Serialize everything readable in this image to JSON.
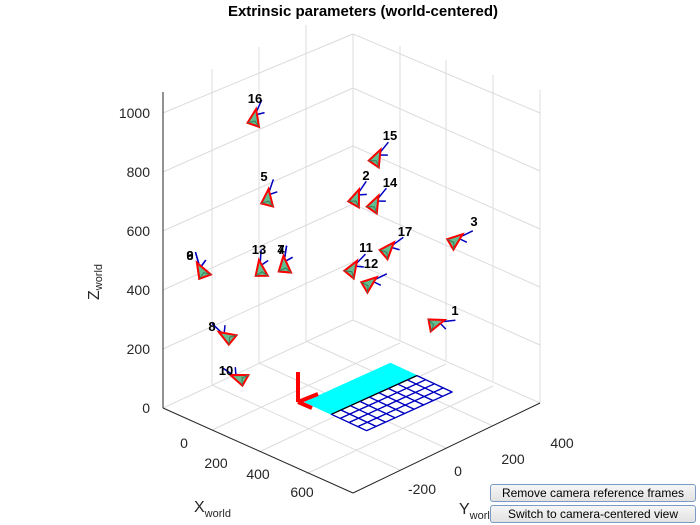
{
  "figure": {
    "title": "Extrinsic parameters (world-centered)",
    "z_axis": {
      "label": "Z",
      "subscript": "world",
      "ticks": [
        "0",
        "200",
        "400",
        "600",
        "800",
        "1000"
      ]
    },
    "x_axis": {
      "label": "X",
      "subscript": "world",
      "ticks": [
        "0",
        "200",
        "400",
        "600"
      ]
    },
    "y_axis": {
      "label": "Y",
      "subscript": "world",
      "ticks": [
        "-200",
        "0",
        "200",
        "400"
      ]
    },
    "cameras": [
      {
        "label": "16"
      },
      {
        "label": "15"
      },
      {
        "label": "5"
      },
      {
        "label": "2"
      },
      {
        "label": "14"
      },
      {
        "label": "3"
      },
      {
        "label": "17"
      },
      {
        "label": "9"
      },
      {
        "label": "6"
      },
      {
        "label": "13"
      },
      {
        "label": "7"
      },
      {
        "label": "4"
      },
      {
        "label": "11"
      },
      {
        "label": "12"
      },
      {
        "label": "1"
      },
      {
        "label": "8"
      },
      {
        "label": "10"
      }
    ],
    "colors": {
      "camera_fill": "#5fbf8f",
      "camera_edge": "#ff0000",
      "camera_axis": "#0000c0",
      "grid_near": "#00ffff",
      "grid_far": "#0000c0",
      "world_axis": "#ff0000"
    }
  },
  "buttons": {
    "remove_frames": "Remove camera reference frames",
    "switch_view": "Switch to camera-centered view"
  }
}
